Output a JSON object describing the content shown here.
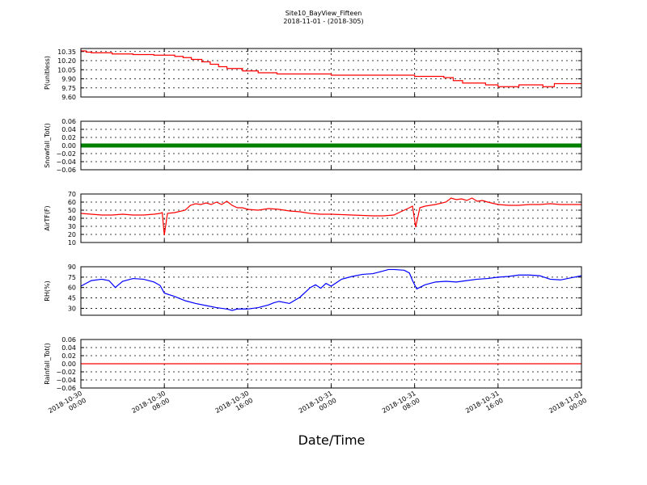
{
  "title": "Site10_BayView_Fifteen",
  "subtitle": "2018-11-01 - (2018-305)",
  "chart_data": {
    "type": "line",
    "title": "Site10_BayView_Fifteen",
    "subtitle": "2018-11-01 - (2018-305)",
    "xlabel": "Date/Time",
    "x_range_hours": [
      0,
      48
    ],
    "x_ticks": [
      {
        "hour": 0,
        "line1": "2018-10-30",
        "line2": "00:00"
      },
      {
        "hour": 8,
        "line1": "2018-10-30",
        "line2": "08:00"
      },
      {
        "hour": 16,
        "line1": "2018-10-30",
        "line2": "16:00"
      },
      {
        "hour": 24,
        "line1": "2018-10-31",
        "line2": "00:00"
      },
      {
        "hour": 32,
        "line1": "2018-10-31",
        "line2": "08:00"
      },
      {
        "hour": 40,
        "line1": "2018-10-31",
        "line2": "16:00"
      },
      {
        "hour": 48,
        "line1": "2018-11-01",
        "line2": "00:00"
      }
    ],
    "grid": true,
    "panels": [
      {
        "ylabel": "P(unitless)",
        "ylim": [
          9.6,
          10.4
        ],
        "yticks": [
          9.6,
          9.75,
          9.9,
          10.05,
          10.2,
          10.35
        ],
        "ytick_labels": [
          "9.60",
          "9.75",
          "9.90",
          "10.05",
          "10.20",
          "10.35"
        ],
        "color": "#ff0000",
        "style": "step",
        "x": [
          0,
          0.5,
          1,
          3,
          5,
          7,
          9,
          9.8,
          10.6,
          11.6,
          12.4,
          13.2,
          14,
          15.5,
          17,
          18.8,
          24,
          32,
          34.8,
          35.7,
          36.6,
          38.8,
          40,
          40.6,
          42,
          44.3,
          45.4,
          48
        ],
        "y": [
          10.36,
          10.34,
          10.33,
          10.31,
          10.3,
          10.29,
          10.27,
          10.25,
          10.22,
          10.18,
          10.14,
          10.1,
          10.07,
          10.03,
          10.0,
          9.98,
          9.96,
          9.94,
          9.92,
          9.87,
          9.83,
          9.8,
          9.77,
          9.77,
          9.8,
          9.77,
          9.82,
          9.82
        ]
      },
      {
        "ylabel": "Snowfall_Tot()",
        "ylim": [
          -0.06,
          0.06
        ],
        "yticks": [
          -0.06,
          -0.04,
          -0.02,
          0.0,
          0.02,
          0.04,
          0.06
        ],
        "ytick_labels": [
          "−0.06",
          "−0.04",
          "−0.02",
          "0.00",
          "0.02",
          "0.04",
          "0.06"
        ],
        "color": "#008000",
        "style": "markers",
        "x": [
          0,
          48
        ],
        "y": [
          0.0,
          0.0
        ]
      },
      {
        "ylabel": "AirTF(F)",
        "ylim": [
          10,
          70
        ],
        "yticks": [
          10,
          20,
          30,
          40,
          50,
          60,
          70
        ],
        "ytick_labels": [
          "10",
          "20",
          "30",
          "40",
          "50",
          "60",
          "70"
        ],
        "color": "#ff0000",
        "style": "line",
        "x": [
          0,
          1,
          2,
          3,
          4,
          5,
          6,
          7,
          7.6,
          7.8,
          8.0,
          8.3,
          9,
          10,
          10.5,
          11,
          11.5,
          12,
          12.5,
          13,
          13.5,
          14,
          14.5,
          15,
          15.5,
          16,
          17,
          18,
          19,
          20,
          21,
          22,
          23,
          24,
          26,
          28,
          29,
          30,
          30.5,
          31,
          31.5,
          31.8,
          32.1,
          32.5,
          33,
          34,
          35,
          35.5,
          36,
          36.5,
          37,
          37.5,
          38,
          38.5,
          39,
          40,
          41,
          42,
          43,
          44,
          45,
          46,
          47,
          48
        ],
        "y": [
          46,
          45,
          44,
          44,
          45,
          44,
          44,
          45,
          46,
          47,
          19,
          46,
          47,
          50,
          56,
          58,
          57,
          59,
          57,
          60,
          57,
          61,
          56,
          53,
          53,
          51,
          50,
          52,
          51,
          49,
          48,
          46,
          45,
          45,
          44,
          43,
          43,
          44,
          47,
          50,
          53,
          55,
          29,
          53,
          55,
          57,
          60,
          65,
          63,
          64,
          62,
          65,
          61,
          62,
          60,
          57,
          56,
          56,
          57,
          57,
          58,
          57,
          57,
          57
        ]
      },
      {
        "ylabel": "RH(%)",
        "ylim": [
          20,
          90
        ],
        "yticks": [
          30,
          45,
          60,
          75,
          90
        ],
        "ytick_labels": [
          "30",
          "45",
          "60",
          "75",
          "90"
        ],
        "color": "#0000ff",
        "style": "line",
        "x": [
          0,
          1,
          2,
          2.7,
          3.3,
          4,
          5,
          6,
          7,
          7.6,
          8,
          9,
          10,
          11,
          12,
          13,
          14,
          14.5,
          15,
          16,
          17,
          18,
          18.5,
          19,
          20,
          21,
          22,
          22.5,
          23,
          23.5,
          24,
          25,
          26,
          27,
          28,
          29,
          29.5,
          30,
          31,
          31.5,
          31.8,
          32.2,
          33,
          34,
          35,
          36,
          37,
          38,
          39,
          40,
          41,
          42,
          43,
          44,
          45,
          46,
          47,
          48
        ],
        "y": [
          62,
          70,
          72,
          70,
          60,
          69,
          73,
          72,
          68,
          63,
          52,
          47,
          41,
          37,
          34,
          31,
          29,
          27,
          29,
          29,
          31,
          35,
          38,
          40,
          37,
          46,
          60,
          64,
          59,
          66,
          62,
          72,
          76,
          79,
          80,
          84,
          86,
          86,
          85,
          81,
          70,
          58,
          64,
          68,
          69,
          68,
          70,
          72,
          73,
          75,
          76,
          78,
          78,
          77,
          72,
          71,
          74,
          77
        ]
      },
      {
        "ylabel": "Rainfall_Tot()",
        "ylim": [
          -0.06,
          0.06
        ],
        "yticks": [
          -0.06,
          -0.04,
          -0.02,
          0.0,
          0.02,
          0.04,
          0.06
        ],
        "ytick_labels": [
          "−0.06",
          "−0.04",
          "−0.02",
          "0.00",
          "0.02",
          "0.04",
          "0.06"
        ],
        "color": "#ff0000",
        "style": "line",
        "x": [
          0,
          48
        ],
        "y": [
          0.0,
          0.0
        ]
      }
    ]
  }
}
